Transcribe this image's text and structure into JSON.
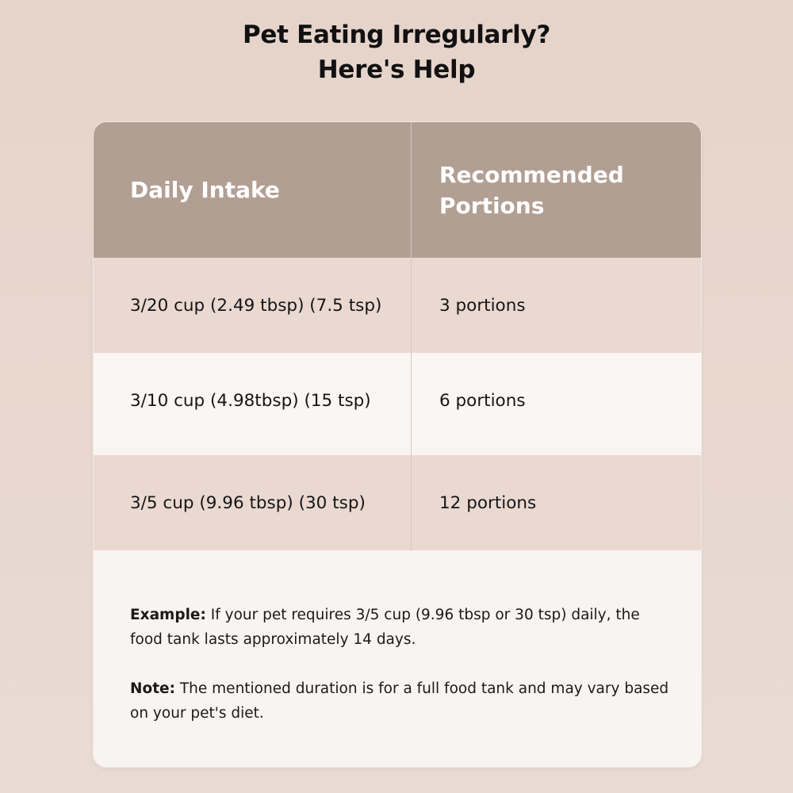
{
  "title": {
    "line1": "Pet Eating Irregularly?",
    "line2": "Here's Help"
  },
  "table": {
    "headers": [
      "Daily Intake",
      "Recommended Portions"
    ],
    "rows": [
      {
        "intake": "3/20 cup (2.49 tbsp) (7.5 tsp)",
        "portions": "3 portions"
      },
      {
        "intake": "3/10 cup (4.98tbsp) (15 tsp)",
        "portions": "6 portions"
      },
      {
        "intake": "3/5 cup (9.96 tbsp) (30 tsp)",
        "portions": "12 portions"
      }
    ]
  },
  "notes": {
    "example": {
      "label": "Example:",
      "text": "If your pet requires 3/5 cup (9.96 tbsp or 30 tsp) daily, the food tank lasts approximately 14 days."
    },
    "note": {
      "label": "Note:",
      "text": "The mentioned duration is for a full food tank and may vary based on your pet's diet."
    }
  },
  "colors": {
    "header_bg": "#b29f94",
    "row_shade": "#ead9d1",
    "row_light": "#faf6f3",
    "page_bg": "#e6d4ca"
  }
}
